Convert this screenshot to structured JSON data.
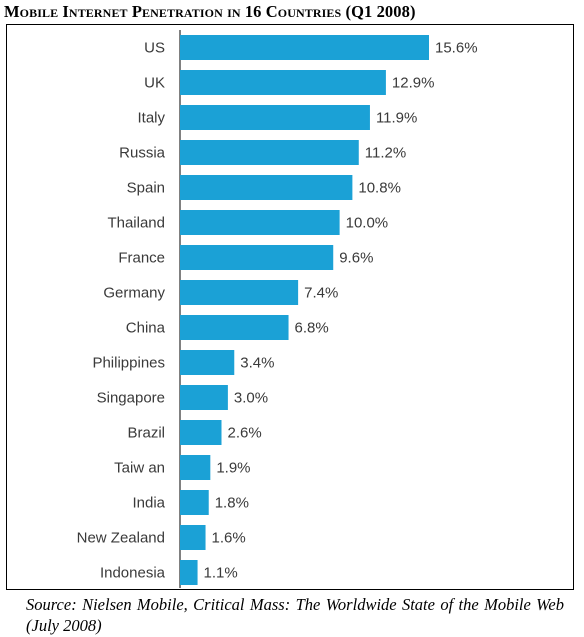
{
  "title": "Mobile Internet Penetration in 16 Countries (Q1 2008)",
  "source": "Source:  Nielsen Mobile, Critical Mass: The Worldwide State of the Mobile Web (July 2008)",
  "colors": {
    "bar": "#1ba1d6",
    "axis": "#000000",
    "label": "#3a3a3a"
  },
  "chart_data": {
    "type": "bar",
    "orientation": "horizontal",
    "title": "Mobile Internet Penetration in 16 Countries (Q1 2008)",
    "categories": [
      "US",
      "UK",
      "Italy",
      "Russia",
      "Spain",
      "Thailand",
      "France",
      "Germany",
      "China",
      "Philippines",
      "Singapore",
      "Brazil",
      "Taiw an",
      "India",
      "New Zealand",
      "Indonesia"
    ],
    "values": [
      15.6,
      12.9,
      11.9,
      11.2,
      10.8,
      10.0,
      9.6,
      7.4,
      6.8,
      3.4,
      3.0,
      2.6,
      1.9,
      1.8,
      1.6,
      1.1
    ],
    "value_labels": [
      "15.6%",
      "12.9%",
      "11.9%",
      "11.2%",
      "10.8%",
      "10.0%",
      "9.6%",
      "7.4%",
      "6.8%",
      "3.4%",
      "3.0%",
      "2.6%",
      "1.9%",
      "1.8%",
      "1.6%",
      "1.1%"
    ],
    "unit": "%",
    "xlim": [
      0,
      15.6
    ],
    "grid": false,
    "legend": "none",
    "xlabel": "",
    "ylabel": ""
  }
}
